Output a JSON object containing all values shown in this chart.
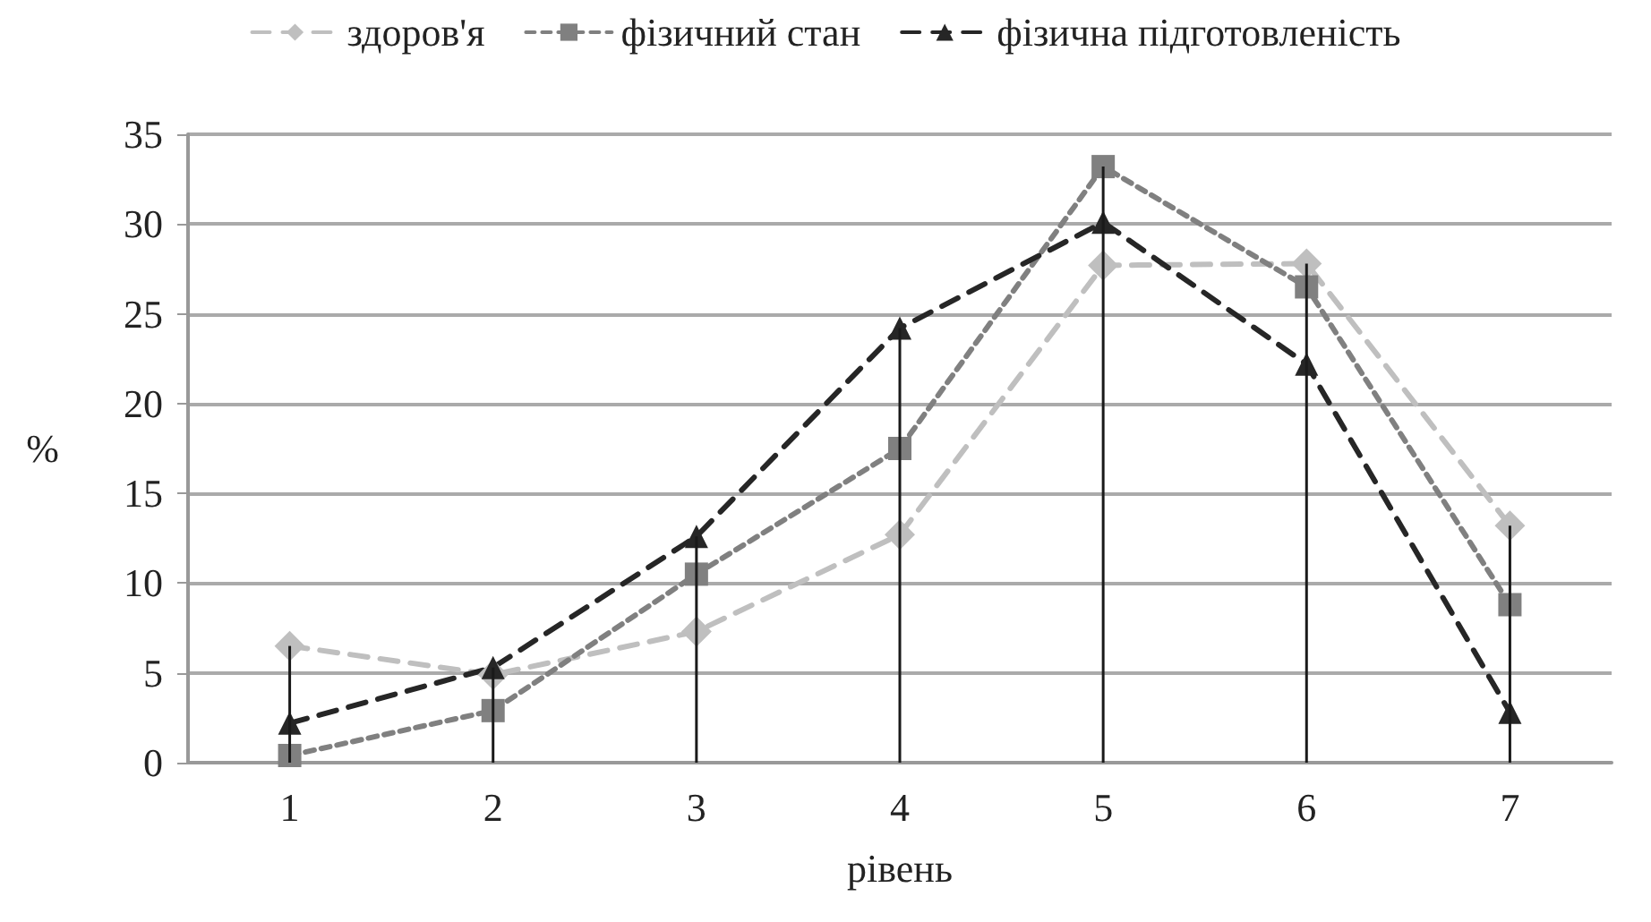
{
  "chart_data": {
    "type": "line",
    "xlabel": "рівень",
    "ylabel": "%",
    "categories": [
      "1",
      "2",
      "3",
      "4",
      "5",
      "6",
      "7"
    ],
    "series": [
      {
        "type": "bar",
        "color": "#1a1a1a",
        "values": [
          6.5,
          5.3,
          12.6,
          24.2,
          33.2,
          27.8,
          13.2
        ]
      },
      {
        "name": "здоров'я",
        "color": "#bfbfbf",
        "marker": "diamond",
        "line_style": "dashed",
        "values": [
          6.5,
          4.9,
          7.3,
          12.7,
          27.7,
          27.8,
          13.2
        ]
      },
      {
        "name": "фізичний стан",
        "color": "#808080",
        "marker": "square",
        "line_style": "dotted",
        "values": [
          0.4,
          2.9,
          10.5,
          17.5,
          33.2,
          26.5,
          8.8
        ]
      },
      {
        "name": "фізична підготовленість",
        "color": "#262626",
        "marker": "triangle",
        "line_style": "dashed",
        "values": [
          2.2,
          5.3,
          12.6,
          24.2,
          30.1,
          22.2,
          2.8
        ]
      }
    ],
    "ylim": [
      0,
      35
    ],
    "yticks": [
      0,
      5,
      10,
      15,
      20,
      25,
      30,
      35
    ],
    "grid": "y",
    "legend": "top"
  }
}
